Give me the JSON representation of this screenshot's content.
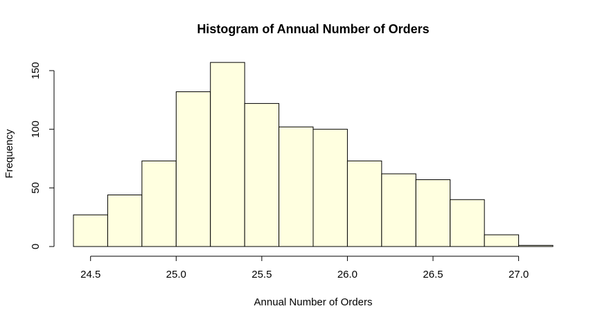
{
  "chart_data": {
    "type": "bar",
    "subtype": "histogram",
    "title": "Histogram of Annual Number of Orders",
    "xlabel": "Annual Number of Orders",
    "ylabel": "Frequency",
    "bin_edges": [
      24.4,
      24.6,
      24.8,
      25.0,
      25.2,
      25.4,
      25.6,
      25.8,
      26.0,
      26.2,
      26.4,
      26.6,
      26.8,
      27.0,
      27.2
    ],
    "values": [
      27,
      44,
      73,
      132,
      157,
      122,
      102,
      100,
      73,
      62,
      57,
      40,
      10,
      1
    ],
    "xlim": [
      24.4,
      27.2
    ],
    "ylim": [
      0,
      160
    ],
    "x_ticks": [
      24.5,
      25.0,
      25.5,
      26.0,
      26.5,
      27.0
    ],
    "x_tick_labels": [
      "24.5",
      "25.0",
      "25.5",
      "26.0",
      "26.5",
      "27.0"
    ],
    "y_ticks": [
      0,
      50,
      100,
      150
    ],
    "y_tick_labels": [
      "0",
      "50",
      "100",
      "150"
    ],
    "bar_color": "#ffffe0",
    "edge_color": "#000000",
    "grid": false,
    "legend": "none"
  }
}
